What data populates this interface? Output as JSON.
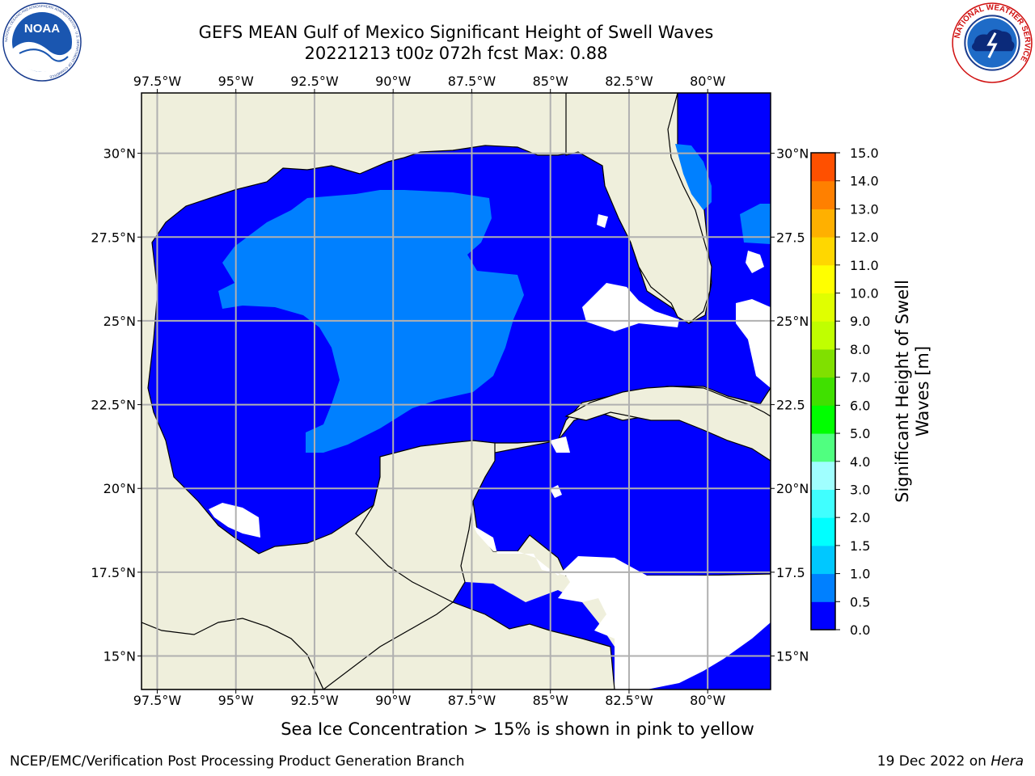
{
  "title_line1": "GEFS MEAN Gulf of Mexico Significant Height of Swell Waves",
  "title_line2": "20221213 t00z 072h fcst   Max: 0.88",
  "noaa_logo_text": "NOAA",
  "noaa_logo_ring_text": "NATIONAL OCEANIC AND ATMOSPHERIC ADMINISTRATION · U.S. DEPARTMENT OF COMMERCE",
  "nws_logo_ring_text": "NATIONAL WEATHER SERVICE",
  "lon_ticks": [
    "97.5°W",
    "95°W",
    "92.5°W",
    "90°W",
    "87.5°W",
    "85°W",
    "82.5°W",
    "80°W"
  ],
  "lat_ticks": [
    "30°N",
    "27.5°N",
    "25°N",
    "22.5°N",
    "20°N",
    "17.5°N",
    "15°N"
  ],
  "lat_ticks_right": [
    "30°N",
    "27.5",
    "25°N",
    "22.5",
    "20°N",
    "17.5",
    "15°N"
  ],
  "colorbar": {
    "label_line1": "Significant Height of Swell",
    "label_line2": "Waves [m]",
    "ticks": [
      "0.0",
      "0.5",
      "1.0",
      "1.5",
      "2.0",
      "3.0",
      "4.0",
      "5.0",
      "6.0",
      "7.0",
      "8.0",
      "9.0",
      "10.0",
      "11.0",
      "12.0",
      "13.0",
      "14.0",
      "15.0"
    ],
    "colors": [
      "#0000ff",
      "#0080ff",
      "#00c8ff",
      "#00ffff",
      "#40ffff",
      "#a0ffff",
      "#50ff80",
      "#00ff00",
      "#40e000",
      "#80e000",
      "#c0ff00",
      "#e0ff00",
      "#ffff00",
      "#ffd700",
      "#ffb000",
      "#ff8000",
      "#ff5000",
      "#ff2000",
      "#ff0000"
    ]
  },
  "colors": {
    "land": "#efefdc",
    "ocean_low": "#0000ff",
    "ocean_mid": "#0080ff",
    "no_data": "#ffffff",
    "grid": "#b0b0b0"
  },
  "caption": "Sea Ice Concentration > 15% is shown in pink to yellow",
  "footer_left": "NCEP/EMC/Verification Post Processing Product Generation Branch",
  "footer_right_prefix": "19 Dec 2022 on ",
  "footer_right_host": "Hera",
  "chart_data": {
    "type": "heatmap",
    "title": "GEFS MEAN Gulf of Mexico Significant Height of Swell Waves",
    "subtitle": "20221213 t00z 072h fcst   Max: 0.88",
    "max_value": 0.88,
    "xlim": [
      -98,
      -78
    ],
    "ylim": [
      14,
      31.8
    ],
    "colorbar_range": [
      0.0,
      15.0
    ],
    "colorbar_label": "Significant Height of Swell Waves [m]",
    "grid": true
  }
}
